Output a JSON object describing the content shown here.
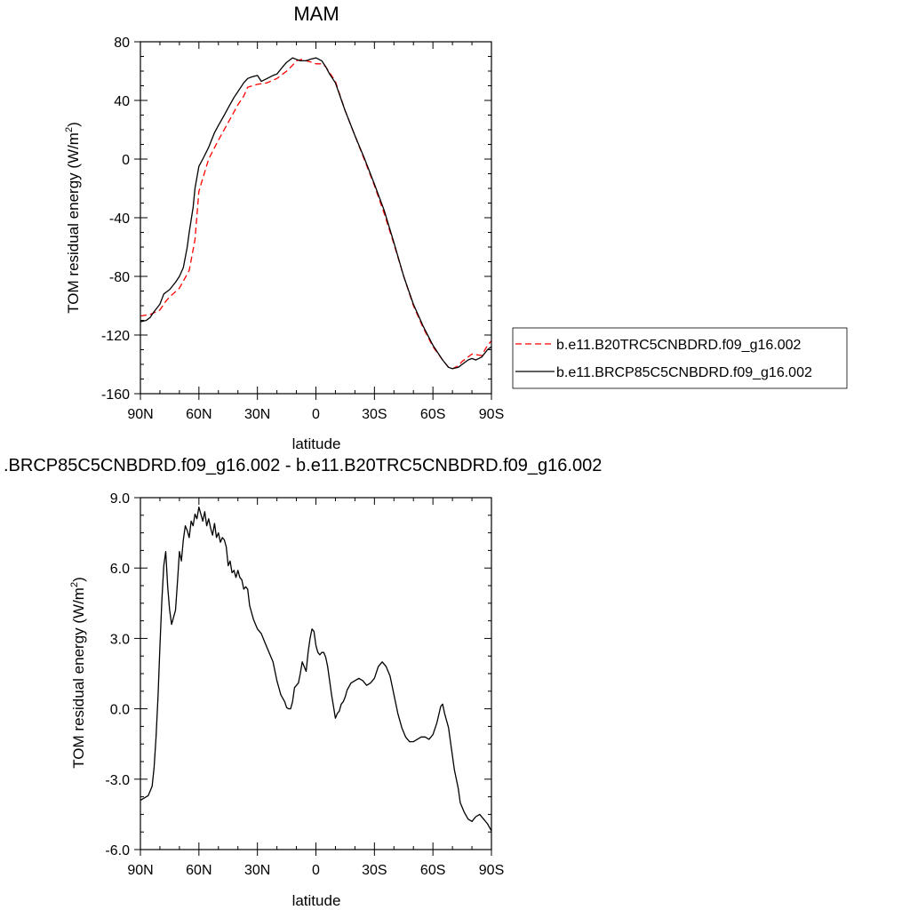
{
  "chart_data": [
    {
      "type": "line",
      "title": "MAM",
      "xlabel": "latitude",
      "ylabel": "TOM residual energy (W/m",
      "ylabel_sup": "2",
      "ylabel_close": ")",
      "xlim": [
        90,
        -90
      ],
      "ylim": [
        -160,
        80
      ],
      "x_ticks": [
        90,
        60,
        30,
        0,
        -30,
        -60,
        -90
      ],
      "x_tick_labels": [
        "90N",
        "60N",
        "30N",
        "0",
        "30S",
        "60S",
        "90S"
      ],
      "y_ticks": [
        80,
        40,
        0,
        -40,
        -80,
        -120,
        -160
      ],
      "y_tick_labels": [
        "80",
        "40",
        "0",
        "-40",
        "-80",
        "-120",
        "-160"
      ],
      "legend_position": "right",
      "series": [
        {
          "name": "b.e11.B20TRC5CNBDRD.f09_g16.002",
          "color": "#ff0000",
          "dash": "dashed",
          "x": [
            90,
            85,
            80,
            77,
            75,
            70,
            65,
            62,
            60,
            55,
            50,
            45,
            40,
            37,
            35,
            30,
            25,
            20,
            17,
            15,
            12,
            10,
            7,
            5,
            2,
            0,
            -3,
            -5,
            -10,
            -15,
            -20,
            -25,
            -30,
            -35,
            -40,
            -45,
            -50,
            -55,
            -60,
            -65,
            -68,
            -70,
            -73,
            -75,
            -80,
            -85,
            -88,
            -90
          ],
          "y": [
            -107,
            -106,
            -103,
            -97,
            -94,
            -88,
            -76,
            -55,
            -22,
            0,
            13,
            25,
            37,
            43,
            49,
            51,
            52,
            55,
            58,
            60,
            64,
            67,
            68,
            67,
            66,
            65,
            65,
            63,
            53,
            33,
            16,
            -1,
            -18,
            -37,
            -58,
            -80,
            -100,
            -115,
            -128,
            -137,
            -142,
            -143,
            -141,
            -138,
            -133,
            -134,
            -127,
            -124
          ]
        },
        {
          "name": "b.e11.BRCP85C5CNBDRD.f09_g16.002",
          "color": "#000000",
          "dash": "solid",
          "x": [
            90,
            87,
            85,
            83,
            80,
            78,
            77,
            75,
            72,
            70,
            68,
            66,
            65,
            63,
            62,
            60,
            58,
            55,
            52,
            50,
            47,
            45,
            42,
            40,
            37,
            35,
            33,
            30,
            28,
            25,
            22,
            20,
            17,
            15,
            12,
            10,
            8,
            5,
            3,
            0,
            -3,
            -5,
            -7,
            -10,
            -15,
            -20,
            -25,
            -30,
            -35,
            -40,
            -45,
            -50,
            -55,
            -60,
            -65,
            -68,
            -70,
            -73,
            -75,
            -78,
            -80,
            -82,
            -85,
            -88,
            -90
          ],
          "y": [
            -111,
            -110,
            -108,
            -104,
            -99,
            -92,
            -91,
            -89,
            -84,
            -80,
            -74,
            -60,
            -50,
            -33,
            -20,
            -5,
            0,
            8,
            18,
            23,
            30,
            35,
            42,
            46,
            52,
            55,
            56,
            57,
            53,
            55,
            57,
            58,
            63,
            66,
            69,
            68,
            67,
            67,
            68,
            69,
            67,
            63,
            58,
            52,
            33,
            16,
            0,
            -17,
            -35,
            -57,
            -80,
            -99,
            -114,
            -127,
            -137,
            -142,
            -143,
            -142,
            -140,
            -137,
            -136,
            -137,
            -135,
            -130,
            -128
          ]
        }
      ]
    },
    {
      "type": "line",
      "title": ".BRCP85C5CNBDRD.f09_g16.002 - b.e11.B20TRC5CNBDRD.f09_g16.002",
      "xlabel": "latitude",
      "ylabel": "TOM residual energy (W/m",
      "ylabel_sup": "2",
      "ylabel_close": ")",
      "xlim": [
        90,
        -90
      ],
      "ylim": [
        -6,
        9
      ],
      "x_ticks": [
        90,
        60,
        30,
        0,
        -30,
        -60,
        -90
      ],
      "x_tick_labels": [
        "90N",
        "60N",
        "30N",
        "0",
        "30S",
        "60S",
        "90S"
      ],
      "y_ticks": [
        9,
        6,
        3,
        0,
        -3,
        -6
      ],
      "y_tick_labels": [
        "9.0",
        "6.0",
        "3.0",
        "0.0",
        "-3.0",
        "-6.0"
      ],
      "series": [
        {
          "color": "#000000",
          "dash": "solid",
          "x": [
            90,
            88,
            86,
            84,
            83,
            82,
            81,
            80,
            79,
            78,
            77,
            76,
            75,
            74,
            73,
            72,
            71,
            70,
            69,
            68,
            67,
            66,
            65,
            64,
            63,
            62,
            61,
            60,
            59,
            58,
            57,
            56,
            55,
            54,
            53,
            52,
            51,
            50,
            49,
            48,
            47,
            46,
            45,
            44,
            43,
            42,
            41,
            40,
            39,
            38,
            37,
            36,
            35,
            34,
            32,
            30,
            28,
            26,
            24,
            22,
            20,
            18,
            16,
            15,
            14,
            13,
            12,
            11,
            10,
            9,
            8,
            7,
            6,
            5,
            4,
            3,
            2,
            1,
            0,
            -1,
            -2,
            -3,
            -4,
            -5,
            -6,
            -7,
            -8,
            -9,
            -10,
            -11,
            -12,
            -13,
            -14,
            -15,
            -16,
            -18,
            -20,
            -22,
            -24,
            -26,
            -28,
            -30,
            -32,
            -34,
            -36,
            -38,
            -40,
            -42,
            -44,
            -46,
            -48,
            -50,
            -52,
            -54,
            -56,
            -58,
            -60,
            -62,
            -64,
            -65,
            -66,
            -67,
            -68,
            -69,
            -70,
            -71,
            -72,
            -73,
            -74,
            -76,
            -78,
            -80,
            -82,
            -84,
            -86,
            -88,
            -90
          ],
          "y": [
            -3.9,
            -3.8,
            -3.7,
            -3.3,
            -2.5,
            -1.2,
            0.5,
            2.6,
            4.6,
            6.1,
            6.7,
            5.2,
            4.2,
            3.6,
            3.9,
            4.2,
            5.4,
            6.7,
            6.3,
            7.2,
            7.8,
            7.6,
            7.3,
            8.0,
            7.8,
            8.3,
            8.1,
            8.6,
            8.3,
            8.0,
            8.4,
            7.8,
            8.1,
            7.7,
            7.4,
            7.9,
            7.3,
            7.5,
            7.1,
            7.3,
            7.2,
            6.9,
            6.1,
            6.3,
            5.8,
            5.9,
            5.6,
            5.9,
            5.6,
            5.5,
            5.1,
            5.2,
            5.1,
            4.4,
            3.8,
            3.4,
            3.2,
            2.8,
            2.4,
            2.0,
            1.2,
            0.6,
            0.3,
            0.05,
            0.0,
            0.0,
            0.3,
            0.9,
            1.0,
            1.1,
            1.5,
            2.0,
            1.8,
            1.6,
            2.4,
            3.0,
            3.4,
            3.3,
            2.7,
            2.4,
            2.3,
            2.4,
            2.4,
            2.2,
            1.8,
            1.2,
            0.6,
            0.1,
            -0.4,
            -0.2,
            -0.1,
            0.2,
            0.3,
            0.5,
            0.8,
            1.1,
            1.2,
            1.3,
            1.2,
            1.0,
            1.1,
            1.3,
            1.8,
            2.0,
            1.8,
            1.4,
            0.6,
            -0.2,
            -0.8,
            -1.2,
            -1.4,
            -1.4,
            -1.3,
            -1.2,
            -1.2,
            -1.3,
            -1.1,
            -0.6,
            0.1,
            0.2,
            -0.2,
            -0.5,
            -0.8,
            -1.4,
            -2.0,
            -2.6,
            -3.0,
            -3.4,
            -4.0,
            -4.4,
            -4.7,
            -4.8,
            -4.6,
            -4.5,
            -4.7,
            -4.9,
            -5.2
          ]
        }
      ]
    }
  ]
}
